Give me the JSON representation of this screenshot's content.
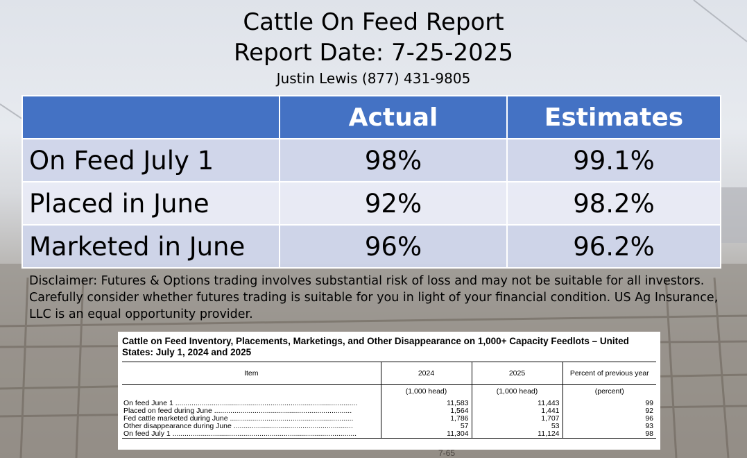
{
  "header": {
    "title": "Cattle On Feed Report",
    "report_date": "Report Date: 7-25-2025",
    "contact": "Justin Lewis (877) 431-9805"
  },
  "summary_table": {
    "columns": [
      "",
      "Actual",
      "Estimates"
    ],
    "rows": [
      {
        "label": "On Feed July 1",
        "actual": "98%",
        "estimate": "99.1%"
      },
      {
        "label": "Placed in June",
        "actual": "92%",
        "estimate": "98.2%"
      },
      {
        "label": "Marketed in June",
        "actual": "96%",
        "estimate": "96.2%"
      }
    ]
  },
  "disclaimer": "Disclaimer:  Futures & Options trading involves substantial risk of loss and may not be suitable for all investors.  Carefully consider whether futures trading is suitable for you in light of your financial condition. US Ag Insurance, LLC is an equal opportunity provider.",
  "usda_table": {
    "title": "Cattle on Feed Inventory, Placements, Marketings, and Other Disappearance on 1,000+ Capacity Feedlots – United States: July 1, 2024 and 2025",
    "headers": [
      "Item",
      "2024",
      "2025",
      "Percent of previous year"
    ],
    "units": [
      "",
      "(1,000 head)",
      "(1,000 head)",
      "(percent)"
    ],
    "rows": [
      {
        "item": "On feed June 1 ..........................................................................................",
        "y2024": "11,583",
        "y2025": "11,443",
        "pct": "99"
      },
      {
        "item": "Placed on feed during June ....................................................................",
        "y2024": "1,564",
        "y2025": "1,441",
        "pct": "92"
      },
      {
        "item": "Fed cattle marketed during June .............................................................",
        "y2024": "1,786",
        "y2025": "1,707",
        "pct": "96"
      },
      {
        "item": "Other disappearance during June ...........................................................",
        "y2024": "57",
        "y2025": "53",
        "pct": "93"
      },
      {
        "item": "On feed July 1 ...........................................................................................",
        "y2024": "11,304",
        "y2025": "11,124",
        "pct": "98"
      }
    ]
  },
  "photo_caption": "7-65"
}
